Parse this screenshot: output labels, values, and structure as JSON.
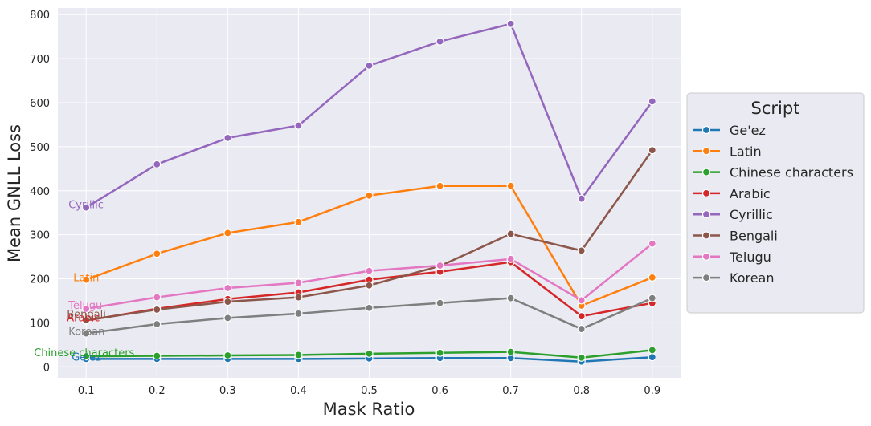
{
  "chart_data": {
    "type": "line",
    "title": "",
    "xlabel": "Mask Ratio",
    "ylabel": "Mean GNLL Loss",
    "x": [
      0.1,
      0.2,
      0.3,
      0.4,
      0.5,
      0.6,
      0.7,
      0.8,
      0.9
    ],
    "xlim": [
      0.06,
      0.94
    ],
    "ylim": [
      -25,
      815
    ],
    "xticks": [
      "0.1",
      "0.2",
      "0.3",
      "0.4",
      "0.5",
      "0.6",
      "0.7",
      "0.8",
      "0.9"
    ],
    "yticks": [
      "0",
      "100",
      "200",
      "300",
      "400",
      "500",
      "600",
      "700",
      "800"
    ],
    "grid": true,
    "background": "#eaeaf2",
    "legend": {
      "title": "Script",
      "placement": "center-right, outside plot"
    },
    "series": [
      {
        "name": "Ge'ez",
        "color": "#1f77b4",
        "values": [
          18,
          18,
          18,
          18,
          19,
          20,
          20,
          12,
          22
        ],
        "annotation": "Ge'ez"
      },
      {
        "name": "Latin",
        "color": "#ff7f0e",
        "values": [
          198,
          257,
          304,
          329,
          389,
          411,
          411,
          139,
          203
        ],
        "annotation": "Latin"
      },
      {
        "name": "Chinese characters",
        "color": "#2ca02c",
        "values": [
          24,
          25,
          26,
          27,
          30,
          32,
          34,
          21,
          38
        ],
        "annotation": "Chinese characters"
      },
      {
        "name": "Arabic",
        "color": "#d62728",
        "values": [
          105,
          132,
          154,
          169,
          198,
          216,
          238,
          115,
          145
        ],
        "annotation": "Arabic"
      },
      {
        "name": "Cyrillic",
        "color": "#9467bd",
        "values": [
          362,
          460,
          520,
          548,
          684,
          739,
          779,
          382,
          603
        ],
        "annotation": "Cyrillic"
      },
      {
        "name": "Bengali",
        "color": "#8c564b",
        "values": [
          106,
          130,
          148,
          158,
          185,
          229,
          302,
          264,
          492
        ],
        "annotation": "Bengali"
      },
      {
        "name": "Telugu",
        "color": "#e377c2",
        "values": [
          132,
          158,
          179,
          191,
          218,
          230,
          245,
          151,
          280
        ],
        "annotation": "Telugu"
      },
      {
        "name": "Korean",
        "color": "#7f7f7f",
        "values": [
          76,
          97,
          111,
          121,
          134,
          145,
          156,
          86,
          156
        ],
        "annotation": "Korean"
      }
    ]
  }
}
